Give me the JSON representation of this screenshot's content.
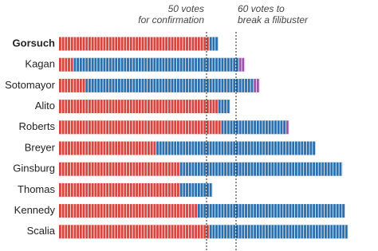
{
  "chart_data": {
    "type": "bar",
    "orientation": "horizontal",
    "stacked": true,
    "categories": [
      "Gorsuch",
      "Kagan",
      "Sotomayor",
      "Alito",
      "Roberts",
      "Breyer",
      "Ginsburg",
      "Thomas",
      "Kennedy",
      "Scalia"
    ],
    "bold_category": 0,
    "series": [
      {
        "color": "#d9443f",
        "values": [
          51,
          5,
          9,
          54,
          55,
          33,
          41,
          41,
          47,
          51
        ]
      },
      {
        "color": "#2a6fae",
        "values": [
          3,
          56,
          57,
          4,
          22,
          54,
          55,
          11,
          50,
          47
        ]
      },
      {
        "color": "#9b55a8",
        "values": [
          0,
          2,
          2,
          0,
          1,
          0,
          0,
          0,
          0,
          0
        ]
      }
    ],
    "annotations": [
      {
        "value": 50,
        "label": [
          "50 votes",
          "for confirmation"
        ]
      },
      {
        "value": 60,
        "label": [
          "60 votes to",
          "break a filibuster"
        ]
      }
    ]
  }
}
